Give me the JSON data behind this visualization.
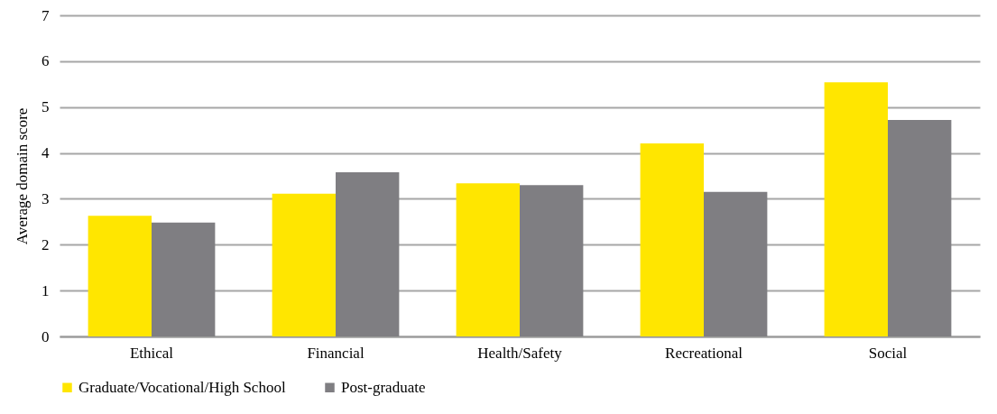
{
  "chart_data": {
    "type": "bar",
    "ylabel": "Average domain score",
    "categories": [
      "Ethical",
      "Financial",
      "Health/Safety",
      "Recreational",
      "Social"
    ],
    "series": [
      {
        "name": "Graduate/Vocational/High School",
        "color": "#ffe600",
        "values": [
          2.63,
          3.11,
          3.34,
          4.21,
          5.54
        ]
      },
      {
        "name": "Post-graduate",
        "color": "#7f7e82",
        "values": [
          2.48,
          3.58,
          3.3,
          3.15,
          4.72
        ]
      }
    ],
    "ylim": [
      0,
      7
    ],
    "yticks": [
      0,
      1,
      2,
      3,
      4,
      5,
      6,
      7
    ],
    "grid": "y",
    "legend": "bottom"
  }
}
